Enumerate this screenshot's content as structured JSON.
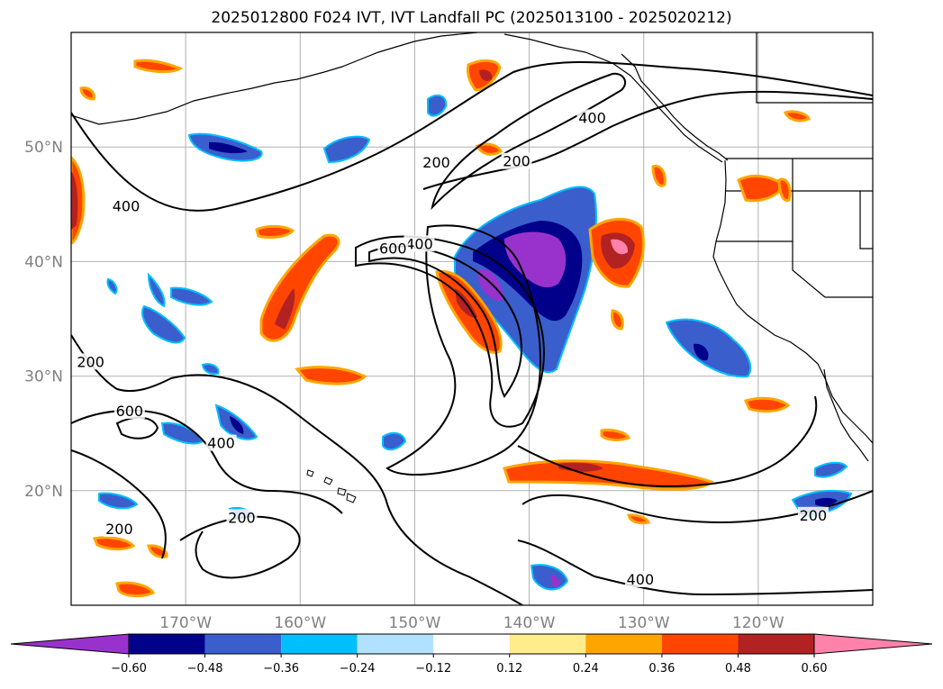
{
  "title": "2025012800 F024 IVT, IVT Landfall PC (2025013100 - 2025020212)",
  "map": {
    "lon_range": [
      -180,
      -110
    ],
    "lat_range": [
      10,
      60
    ],
    "lon_ticks": [
      {
        "lon": -170,
        "label": "170°W"
      },
      {
        "lon": -160,
        "label": "160°W"
      },
      {
        "lon": -150,
        "label": "150°W"
      },
      {
        "lon": -140,
        "label": "140°W"
      },
      {
        "lon": -130,
        "label": "130°W"
      },
      {
        "lon": -120,
        "label": "120°W"
      }
    ],
    "lat_ticks": [
      {
        "lat": 20,
        "label": "20°N"
      },
      {
        "lat": 30,
        "label": "30°N"
      },
      {
        "lat": 40,
        "label": "40°N"
      },
      {
        "lat": 50,
        "label": "50°N"
      }
    ],
    "grid": true,
    "contour_labels": [
      {
        "text": "400",
        "lon": -175.2,
        "lat": 44.8
      },
      {
        "text": "400",
        "lon": -149.6,
        "lat": 41.5
      },
      {
        "text": "400",
        "lon": -166.9,
        "lat": 24.1
      },
      {
        "text": "400",
        "lon": -130.3,
        "lat": 12.2
      },
      {
        "text": "400",
        "lon": -134.5,
        "lat": 52.5
      },
      {
        "text": "200",
        "lon": -148.1,
        "lat": 48.6
      },
      {
        "text": "200",
        "lon": -141.1,
        "lat": 48.7
      },
      {
        "text": "200",
        "lon": -178.3,
        "lat": 31.2
      },
      {
        "text": "200",
        "lon": -165.1,
        "lat": 17.6
      },
      {
        "text": "200",
        "lon": -175.8,
        "lat": 16.6
      },
      {
        "text": "200",
        "lon": -115.2,
        "lat": 17.8
      },
      {
        "text": "600",
        "lon": -151.9,
        "lat": 41.1
      },
      {
        "text": "600",
        "lon": -174.9,
        "lat": 26.9
      }
    ]
  },
  "colorbar": {
    "colors": [
      "#9932cc",
      "#00008b",
      "#3a5fcd",
      "#00bfff",
      "#b0e2ff",
      "#ffffff",
      "#ffec8b",
      "#ffa500",
      "#ff4500",
      "#b22222",
      "#ff82ab"
    ],
    "ticks": [
      "−0.60",
      "−0.48",
      "−0.36",
      "−0.24",
      "−0.12",
      "0.12",
      "0.24",
      "0.36",
      "0.48",
      "0.60"
    ]
  }
}
